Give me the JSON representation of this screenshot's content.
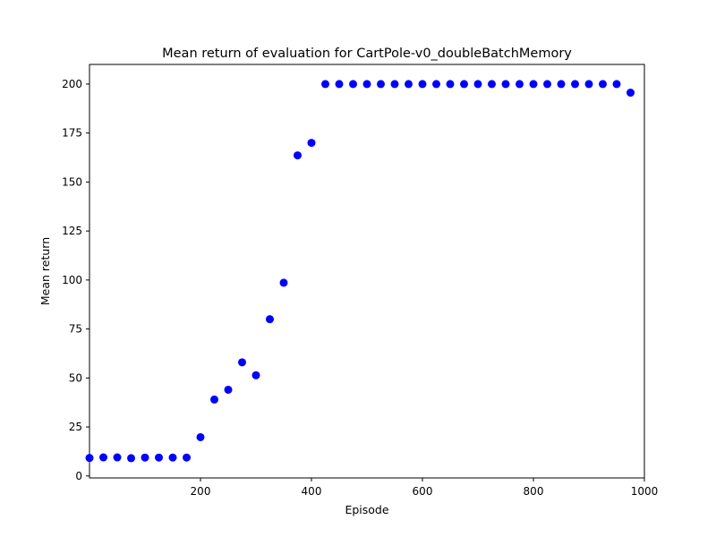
{
  "chart_data": {
    "type": "scatter",
    "title": "Mean return of evaluation for CartPole-v0_doubleBatchMemory",
    "xlabel": "Episode",
    "ylabel": "Mean return",
    "xlim": [
      0,
      1000
    ],
    "ylim": [
      -1,
      210
    ],
    "xticks": [
      200,
      400,
      600,
      800,
      1000
    ],
    "yticks": [
      0,
      25,
      50,
      75,
      100,
      125,
      150,
      175,
      200
    ],
    "grid": false,
    "legend": "none",
    "marker_color": "#0000ff",
    "series": [
      {
        "x": [
          0,
          25,
          50,
          75,
          100,
          125,
          150,
          175,
          200,
          225,
          250,
          275,
          300,
          325,
          350,
          375,
          400,
          425,
          450,
          475,
          500,
          525,
          550,
          575,
          600,
          625,
          650,
          675,
          700,
          725,
          750,
          775,
          800,
          825,
          850,
          875,
          900,
          925,
          950,
          975
        ],
        "y": [
          9.2,
          9.5,
          9.5,
          9.1,
          9.4,
          9.4,
          9.4,
          9.4,
          19.8,
          39.0,
          44.0,
          58.0,
          51.4,
          80.0,
          98.6,
          163.6,
          170.0,
          200,
          200,
          200,
          200,
          200,
          200,
          200,
          200,
          200,
          200,
          200,
          200,
          200,
          200,
          200,
          200,
          200,
          200,
          200,
          200,
          200,
          200,
          195.6
        ]
      }
    ]
  }
}
